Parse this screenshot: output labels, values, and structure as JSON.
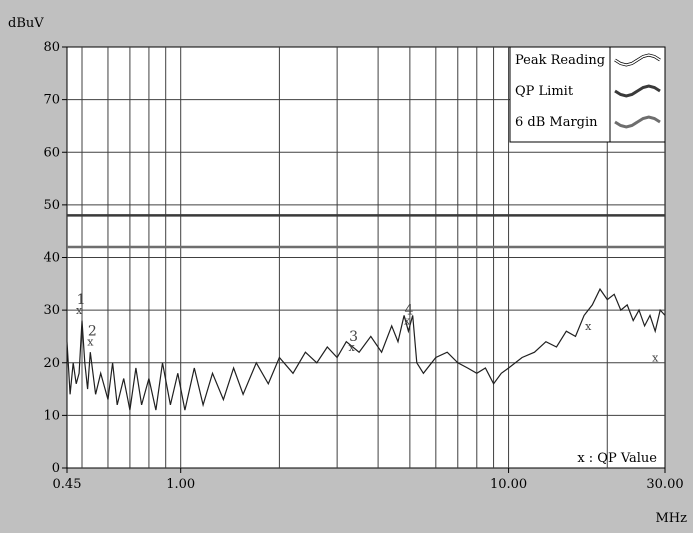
{
  "chart_data": {
    "type": "line",
    "ylabel": "dBuV",
    "xlabel": "MHz",
    "x_scale": "log",
    "xlim": [
      0.45,
      30.0
    ],
    "ylim": [
      0,
      80
    ],
    "x_ticks": [
      {
        "value": 0.45,
        "label": "0.45"
      },
      {
        "value": 1.0,
        "label": "1.00"
      },
      {
        "value": 10.0,
        "label": "10.00"
      },
      {
        "value": 30.0,
        "label": "30.00"
      }
    ],
    "y_ticks": [
      0,
      10,
      20,
      30,
      40,
      50,
      60,
      70,
      80
    ],
    "grid": true,
    "legend": {
      "placement": "top-right",
      "entries": [
        {
          "name": "Peak Reading",
          "color": "#ffffff"
        },
        {
          "name": "QP Limit",
          "color": "#3a3a3a"
        },
        {
          "name": "6 dB Margin",
          "color": "#6e6e6e"
        }
      ]
    },
    "series": [
      {
        "name": "Peak Reading",
        "color": "#202020",
        "type": "line",
        "points": [
          [
            0.45,
            24
          ],
          [
            0.46,
            14
          ],
          [
            0.47,
            20
          ],
          [
            0.48,
            16
          ],
          [
            0.49,
            18
          ],
          [
            0.5,
            28
          ],
          [
            0.51,
            20
          ],
          [
            0.52,
            15
          ],
          [
            0.53,
            22
          ],
          [
            0.55,
            14
          ],
          [
            0.57,
            18
          ],
          [
            0.6,
            13
          ],
          [
            0.62,
            20
          ],
          [
            0.64,
            12
          ],
          [
            0.67,
            17
          ],
          [
            0.7,
            11
          ],
          [
            0.73,
            19
          ],
          [
            0.76,
            12
          ],
          [
            0.8,
            17
          ],
          [
            0.84,
            11
          ],
          [
            0.88,
            20
          ],
          [
            0.93,
            12
          ],
          [
            0.98,
            18
          ],
          [
            1.03,
            11
          ],
          [
            1.1,
            19
          ],
          [
            1.17,
            12
          ],
          [
            1.25,
            18
          ],
          [
            1.35,
            13
          ],
          [
            1.45,
            19
          ],
          [
            1.55,
            14
          ],
          [
            1.7,
            20
          ],
          [
            1.85,
            16
          ],
          [
            2.0,
            21
          ],
          [
            2.2,
            18
          ],
          [
            2.4,
            22
          ],
          [
            2.6,
            20
          ],
          [
            2.8,
            23
          ],
          [
            3.0,
            21
          ],
          [
            3.2,
            24
          ],
          [
            3.5,
            22
          ],
          [
            3.8,
            25
          ],
          [
            4.1,
            22
          ],
          [
            4.4,
            27
          ],
          [
            4.6,
            24
          ],
          [
            4.8,
            29
          ],
          [
            4.95,
            26
          ],
          [
            5.1,
            29
          ],
          [
            5.25,
            20
          ],
          [
            5.5,
            18
          ],
          [
            6.0,
            21
          ],
          [
            6.5,
            22
          ],
          [
            7.0,
            20
          ],
          [
            7.5,
            19
          ],
          [
            8.0,
            18
          ],
          [
            8.5,
            19
          ],
          [
            9.0,
            16
          ],
          [
            9.5,
            18
          ],
          [
            10.0,
            19
          ],
          [
            11.0,
            21
          ],
          [
            12.0,
            22
          ],
          [
            13.0,
            24
          ],
          [
            14.0,
            23
          ],
          [
            15.0,
            26
          ],
          [
            16.0,
            25
          ],
          [
            17.0,
            29
          ],
          [
            18.0,
            31
          ],
          [
            19.0,
            34
          ],
          [
            20.0,
            32
          ],
          [
            21.0,
            33
          ],
          [
            22.0,
            30
          ],
          [
            23.0,
            31
          ],
          [
            24.0,
            28
          ],
          [
            25.0,
            30
          ],
          [
            26.0,
            27
          ],
          [
            27.0,
            29
          ],
          [
            28.0,
            26
          ],
          [
            29.0,
            30
          ],
          [
            30.0,
            29
          ]
        ]
      },
      {
        "name": "QP Limit",
        "color": "#3a3a3a",
        "type": "line",
        "values": [
          48,
          48
        ],
        "x": [
          0.45,
          30.0
        ]
      },
      {
        "name": "6 dB Margin",
        "color": "#6e6e6e",
        "type": "line",
        "values": [
          42,
          42
        ],
        "x": [
          0.45,
          30.0
        ]
      }
    ],
    "qp_points": [
      {
        "label": "1",
        "x": 0.49,
        "y": 30
      },
      {
        "label": "2",
        "x": 0.53,
        "y": 24
      },
      {
        "label": "3",
        "x": 3.32,
        "y": 23
      },
      {
        "label": "4",
        "x": 4.9,
        "y": 28
      },
      {
        "label": "",
        "x": 17.5,
        "y": 27
      },
      {
        "label": "",
        "x": 28.0,
        "y": 21
      }
    ],
    "qp_marker": "x",
    "qp_note": "x : QP Value",
    "colors": {
      "background": "#c0c0c0",
      "plot_area": "#ffffff",
      "grid": "#404040",
      "axis": "#000000"
    }
  }
}
